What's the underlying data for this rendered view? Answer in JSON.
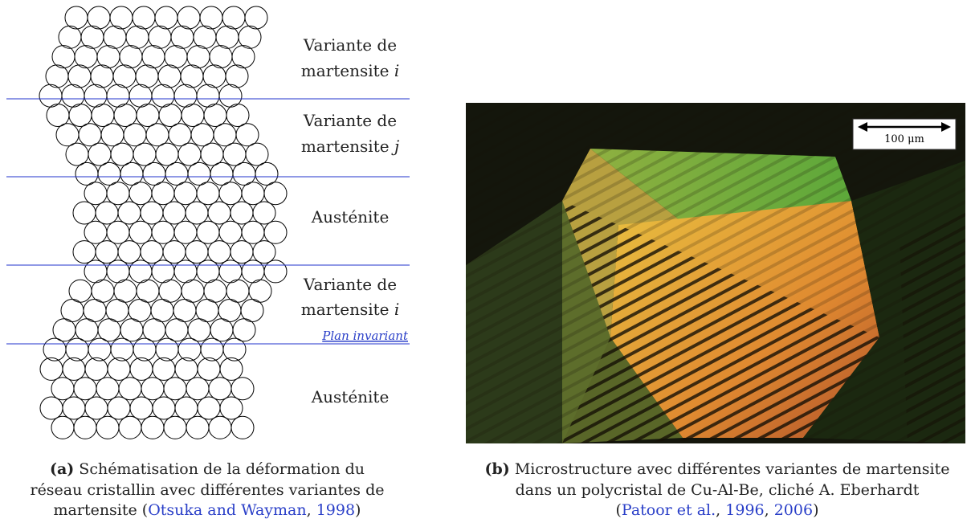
{
  "panel_a": {
    "labels": [
      {
        "line1": "Variante de",
        "line2": "martensite",
        "symbol": "i"
      },
      {
        "line1": "Variante de",
        "line2": "martensite",
        "symbol": "j"
      },
      {
        "line1": "Austénite"
      },
      {
        "line1": "Variante de",
        "line2": "martensite",
        "symbol": "i"
      },
      {
        "line1": "Austénite"
      }
    ],
    "plane_label": "Plan invariant",
    "caption": {
      "tag": "(a)",
      "lines": [
        [
          {
            "text": "Schématisation de la déformation du"
          }
        ],
        [
          {
            "text": "réseau cristallin avec différentes variantes de"
          }
        ],
        [
          {
            "text": "martensite ("
          },
          {
            "text": "Otsuka and Wayman",
            "link": true
          },
          {
            "text": ", "
          },
          {
            "text": "1998",
            "link": true
          },
          {
            "text": ")"
          }
        ]
      ]
    }
  },
  "panel_b": {
    "scale_label": "100 μm",
    "caption": {
      "tag": "(b)",
      "lines": [
        [
          {
            "text": "Microstructure avec différentes variantes de martensite"
          }
        ],
        [
          {
            "text": "dans un polycristal de Cu-Al-Be, cliché A. Eberhardt"
          }
        ],
        [
          {
            "text": "("
          },
          {
            "text": "Patoor et al.",
            "link": true
          },
          {
            "text": ", "
          },
          {
            "text": "1996",
            "link": true
          },
          {
            "text": ", "
          },
          {
            "text": "2006",
            "link": true
          },
          {
            "text": ")"
          }
        ]
      ]
    }
  }
}
